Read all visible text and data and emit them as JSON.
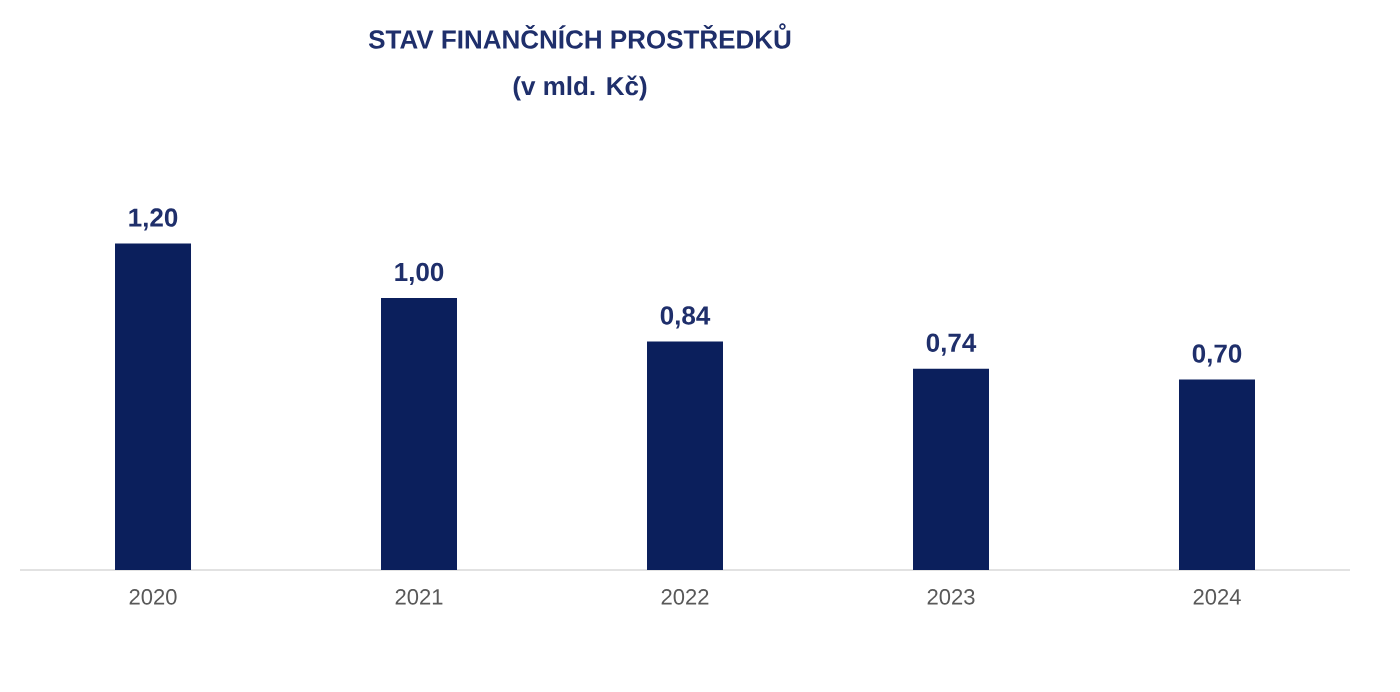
{
  "chart_data": {
    "type": "bar",
    "title": "STAV FINANČNÍCH PROSTŘEDKŮ",
    "subtitle": "(v mld. Kč)",
    "categories": [
      "2020",
      "2021",
      "2022",
      "2023",
      "2024"
    ],
    "values": [
      1.2,
      1.0,
      0.84,
      0.74,
      0.7
    ],
    "value_labels": [
      "1,20",
      "1,00",
      "0,84",
      "0,74",
      "0,70"
    ],
    "color": "#0b1f5c",
    "tick_labels": "x"
  }
}
